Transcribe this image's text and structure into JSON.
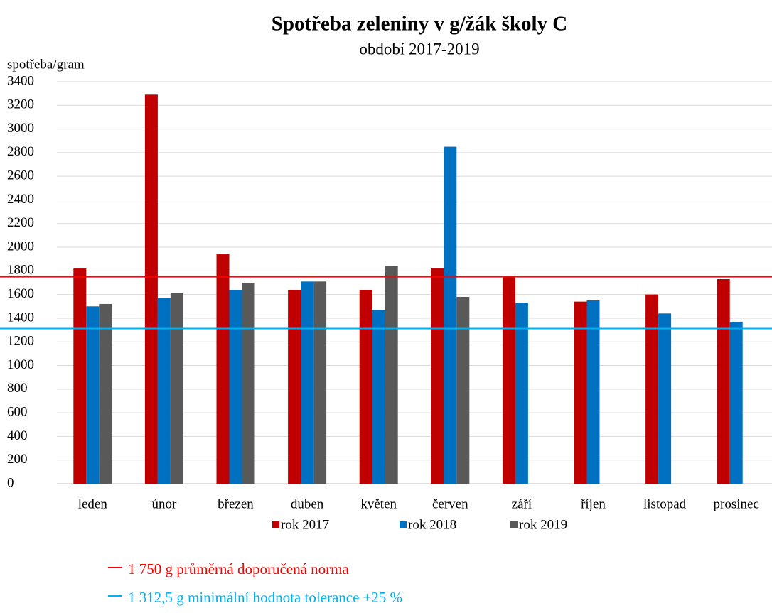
{
  "chart_data": {
    "type": "bar",
    "title": "Spotřeba zeleniny v g/žák školy C",
    "subtitle": "období 2017-2019",
    "y_label": "spotřeba/gram",
    "categories": [
      "leden",
      "únor",
      "březen",
      "duben",
      "květen",
      "červen",
      "září",
      "říjen",
      "listopad",
      "prosinec"
    ],
    "series": [
      {
        "name": "rok 2017",
        "color": "#c00000",
        "values": [
          1820,
          3290,
          1940,
          1640,
          1640,
          1820,
          1750,
          1540,
          1600,
          1730
        ]
      },
      {
        "name": "rok 2018",
        "color": "#0070c0",
        "values": [
          1500,
          1570,
          1640,
          1710,
          1470,
          2850,
          1530,
          1550,
          1440,
          1370
        ]
      },
      {
        "name": "rok 2019",
        "color": "#595959",
        "values": [
          1520,
          1610,
          1700,
          1710,
          1840,
          1580,
          null,
          null,
          null,
          null
        ]
      }
    ],
    "reference_lines": [
      {
        "value": 1750,
        "label": "1 750 g průměrná doporučená norma",
        "color": "#ff0000"
      },
      {
        "value": 1312.5,
        "label": "1 312,5 g minimální hodnota tolerance ±25 %",
        "color": "#00b0f0"
      }
    ],
    "ylim": [
      0,
      3400
    ],
    "yticks": [
      0,
      200,
      400,
      600,
      800,
      1000,
      1200,
      1400,
      1600,
      1800,
      2000,
      2200,
      2400,
      2600,
      2800,
      3000,
      3200,
      3400
    ],
    "grid": true
  }
}
